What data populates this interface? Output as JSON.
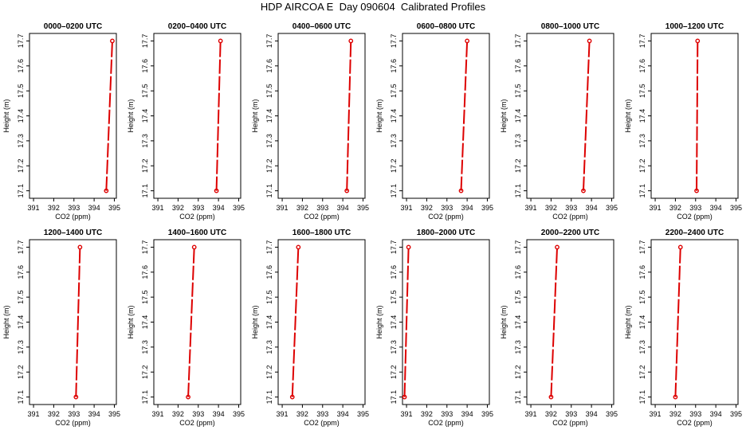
{
  "title": "HDP AIRCOA E  Day 090604  Calibrated Profiles",
  "colors": {
    "series": "#dd0000",
    "axis": "#000000"
  },
  "chart_data": [
    {
      "type": "line",
      "title": "0000–0200 UTC",
      "xlabel": "CO2 (ppm)",
      "ylabel": "Height (m)",
      "xlim": [
        390.8,
        395.1
      ],
      "ylim": [
        17.07,
        17.73
      ],
      "xticks": [
        391,
        392,
        393,
        394,
        395
      ],
      "yticks": [
        17.1,
        17.2,
        17.3,
        17.4,
        17.5,
        17.6,
        17.7
      ],
      "series": [
        {
          "points": [
            {
              "x": 394.6,
              "y": 17.1
            },
            {
              "x": 394.9,
              "y": 17.7
            }
          ]
        }
      ]
    },
    {
      "type": "line",
      "title": "0200–0400 UTC",
      "xlabel": "CO2 (ppm)",
      "ylabel": "Height (m)",
      "xlim": [
        390.8,
        395.1
      ],
      "ylim": [
        17.07,
        17.73
      ],
      "xticks": [
        391,
        392,
        393,
        394,
        395
      ],
      "yticks": [
        17.1,
        17.2,
        17.3,
        17.4,
        17.5,
        17.6,
        17.7
      ],
      "series": [
        {
          "points": [
            {
              "x": 393.9,
              "y": 17.1
            },
            {
              "x": 394.1,
              "y": 17.7
            }
          ]
        }
      ]
    },
    {
      "type": "line",
      "title": "0400–0600 UTC",
      "xlabel": "CO2 (ppm)",
      "ylabel": "Height (m)",
      "xlim": [
        390.8,
        395.1
      ],
      "ylim": [
        17.07,
        17.73
      ],
      "xticks": [
        391,
        392,
        393,
        394,
        395
      ],
      "yticks": [
        17.1,
        17.2,
        17.3,
        17.4,
        17.5,
        17.6,
        17.7
      ],
      "series": [
        {
          "points": [
            {
              "x": 394.2,
              "y": 17.1
            },
            {
              "x": 394.4,
              "y": 17.7
            }
          ]
        }
      ]
    },
    {
      "type": "line",
      "title": "0600–0800 UTC",
      "xlabel": "CO2 (ppm)",
      "ylabel": "Height (m)",
      "xlim": [
        390.8,
        395.1
      ],
      "ylim": [
        17.07,
        17.73
      ],
      "xticks": [
        391,
        392,
        393,
        394,
        395
      ],
      "yticks": [
        17.1,
        17.2,
        17.3,
        17.4,
        17.5,
        17.6,
        17.7
      ],
      "series": [
        {
          "points": [
            {
              "x": 393.7,
              "y": 17.1
            },
            {
              "x": 394.0,
              "y": 17.7
            }
          ]
        }
      ]
    },
    {
      "type": "line",
      "title": "0800–1000 UTC",
      "xlabel": "CO2 (ppm)",
      "ylabel": "Height (m)",
      "xlim": [
        390.8,
        395.1
      ],
      "ylim": [
        17.07,
        17.73
      ],
      "xticks": [
        391,
        392,
        393,
        394,
        395
      ],
      "yticks": [
        17.1,
        17.2,
        17.3,
        17.4,
        17.5,
        17.6,
        17.7
      ],
      "series": [
        {
          "points": [
            {
              "x": 393.6,
              "y": 17.1
            },
            {
              "x": 393.9,
              "y": 17.7
            }
          ]
        }
      ]
    },
    {
      "type": "line",
      "title": "1000–1200 UTC",
      "xlabel": "CO2 (ppm)",
      "ylabel": "Height (m)",
      "xlim": [
        390.8,
        395.1
      ],
      "ylim": [
        17.07,
        17.73
      ],
      "xticks": [
        391,
        392,
        393,
        394,
        395
      ],
      "yticks": [
        17.1,
        17.2,
        17.3,
        17.4,
        17.5,
        17.6,
        17.7
      ],
      "series": [
        {
          "points": [
            {
              "x": 393.05,
              "y": 17.1
            },
            {
              "x": 393.1,
              "y": 17.7
            }
          ]
        }
      ]
    },
    {
      "type": "line",
      "title": "1200–1400 UTC",
      "xlabel": "CO2 (ppm)",
      "ylabel": "Height (m)",
      "xlim": [
        390.8,
        395.1
      ],
      "ylim": [
        17.07,
        17.73
      ],
      "xticks": [
        391,
        392,
        393,
        394,
        395
      ],
      "yticks": [
        17.1,
        17.2,
        17.3,
        17.4,
        17.5,
        17.6,
        17.7
      ],
      "series": [
        {
          "points": [
            {
              "x": 393.1,
              "y": 17.1
            },
            {
              "x": 393.3,
              "y": 17.7
            }
          ]
        }
      ]
    },
    {
      "type": "line",
      "title": "1400–1600 UTC",
      "xlabel": "CO2 (ppm)",
      "ylabel": "Height (m)",
      "xlim": [
        390.8,
        395.1
      ],
      "ylim": [
        17.07,
        17.73
      ],
      "xticks": [
        391,
        392,
        393,
        394,
        395
      ],
      "yticks": [
        17.1,
        17.2,
        17.3,
        17.4,
        17.5,
        17.6,
        17.7
      ],
      "series": [
        {
          "points": [
            {
              "x": 392.5,
              "y": 17.1
            },
            {
              "x": 392.8,
              "y": 17.7
            }
          ]
        }
      ]
    },
    {
      "type": "line",
      "title": "1600–1800 UTC",
      "xlabel": "CO2 (ppm)",
      "ylabel": "Height (m)",
      "xlim": [
        390.8,
        395.1
      ],
      "ylim": [
        17.07,
        17.73
      ],
      "xticks": [
        391,
        392,
        393,
        394,
        395
      ],
      "yticks": [
        17.1,
        17.2,
        17.3,
        17.4,
        17.5,
        17.6,
        17.7
      ],
      "series": [
        {
          "points": [
            {
              "x": 391.5,
              "y": 17.1
            },
            {
              "x": 391.8,
              "y": 17.7
            }
          ]
        }
      ]
    },
    {
      "type": "line",
      "title": "1800–2000 UTC",
      "xlabel": "CO2 (ppm)",
      "ylabel": "Height (m)",
      "xlim": [
        390.8,
        395.1
      ],
      "ylim": [
        17.07,
        17.73
      ],
      "xticks": [
        391,
        392,
        393,
        394,
        395
      ],
      "yticks": [
        17.1,
        17.2,
        17.3,
        17.4,
        17.5,
        17.6,
        17.7
      ],
      "series": [
        {
          "points": [
            {
              "x": 390.9,
              "y": 17.1
            },
            {
              "x": 391.1,
              "y": 17.7
            }
          ]
        }
      ]
    },
    {
      "type": "line",
      "title": "2000–2200 UTC",
      "xlabel": "CO2 (ppm)",
      "ylabel": "Height (m)",
      "xlim": [
        390.8,
        395.1
      ],
      "ylim": [
        17.07,
        17.73
      ],
      "xticks": [
        391,
        392,
        393,
        394,
        395
      ],
      "yticks": [
        17.1,
        17.2,
        17.3,
        17.4,
        17.5,
        17.6,
        17.7
      ],
      "series": [
        {
          "points": [
            {
              "x": 392.0,
              "y": 17.1
            },
            {
              "x": 392.3,
              "y": 17.7
            }
          ]
        }
      ]
    },
    {
      "type": "line",
      "title": "2200–2400 UTC",
      "xlabel": "CO2 (ppm)",
      "ylabel": "Height (m)",
      "xlim": [
        390.8,
        395.1
      ],
      "ylim": [
        17.07,
        17.73
      ],
      "xticks": [
        391,
        392,
        393,
        394,
        395
      ],
      "yticks": [
        17.1,
        17.2,
        17.3,
        17.4,
        17.5,
        17.6,
        17.7
      ],
      "series": [
        {
          "points": [
            {
              "x": 392.0,
              "y": 17.1
            },
            {
              "x": 392.25,
              "y": 17.7
            }
          ]
        }
      ]
    }
  ]
}
